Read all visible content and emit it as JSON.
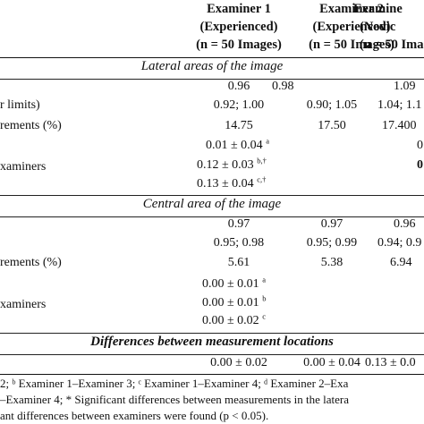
{
  "header": {
    "col1": [
      "Examiner 1",
      "(Experienced)",
      "(n = 50 Images)"
    ],
    "col2": [
      "Examiner 2",
      "(Experienced)",
      "(n = 50 Images)"
    ],
    "col3": [
      "Examine",
      "(Novic",
      "(n = 50 Ima"
    ]
  },
  "lateral": {
    "title": "Lateral areas of the image",
    "row_labels": [
      "r limits)",
      "rements (%)",
      "xaminers"
    ],
    "rows": [
      [
        "0.96",
        "0.98",
        "1.09"
      ],
      [
        "0.92; 1.00",
        "0.90; 1.05",
        "1.04; 1.1"
      ],
      [
        "14.75",
        "17.50",
        "17.400"
      ]
    ],
    "pairs": [
      {
        "value": "0.01 ± 0.04",
        "sup": "a",
        "right": "0"
      },
      {
        "value": "0.12 ± 0.03",
        "sup": "b,†",
        "right": "0"
      },
      {
        "value": "0.13 ± 0.04",
        "sup": "c,†",
        "right": ""
      }
    ]
  },
  "central": {
    "title": "Central area of the image",
    "row_labels": [
      "rements (%)",
      "xaminers"
    ],
    "rows": [
      [
        "0.97",
        "0.97",
        "0.96"
      ],
      [
        "0.95; 0.98",
        "0.95; 0.99",
        "0.94; 0.9"
      ],
      [
        "5.61",
        "5.38",
        "6.94"
      ]
    ],
    "pairs": [
      {
        "value": "0.00 ± 0.01",
        "sup": "a"
      },
      {
        "value": "0.00 ± 0.01",
        "sup": "b"
      },
      {
        "value": "0.00 ± 0.02",
        "sup": "c"
      }
    ]
  },
  "differences": {
    "title": "Differences between measurement locations",
    "values": [
      "0.00 ± 0.02",
      "0.00 ± 0.04",
      "0.13 ± 0.0"
    ]
  },
  "footnotes": [
    "2; ᵇ Examiner 1–Examiner 3; ᶜ Examiner 1–Examiner 4; ᵈ Examiner 2–Exa",
    "–Examiner 4; * Significant differences between measurements in the latera",
    "ant differences between examiners were found (p < 0.05)."
  ]
}
